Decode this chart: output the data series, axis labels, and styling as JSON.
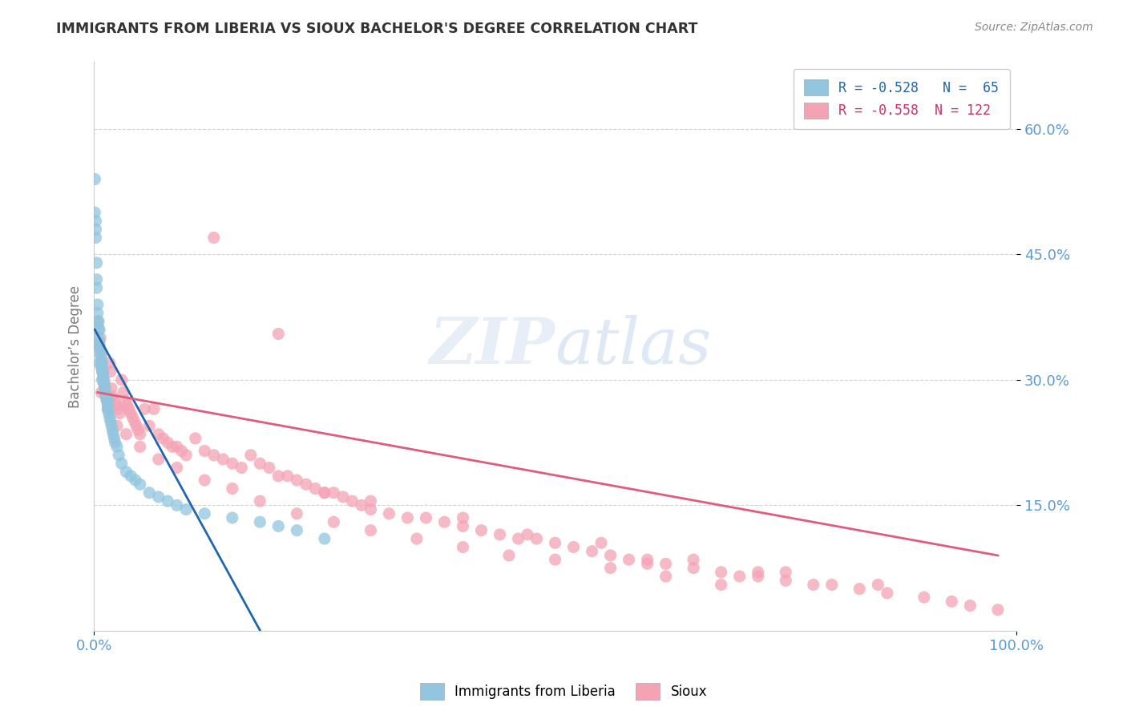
{
  "title": "IMMIGRANTS FROM LIBERIA VS SIOUX BACHELOR'S DEGREE CORRELATION CHART",
  "source": "Source: ZipAtlas.com",
  "ylabel": "Bachelor’s Degree",
  "legend1_label": "Immigrants from Liberia",
  "legend2_label": "Sioux",
  "R1": -0.528,
  "N1": 65,
  "R2": -0.558,
  "N2": 122,
  "color1": "#92c5de",
  "color2": "#f4a3b5",
  "line1_color": "#2166ac",
  "line2_color": "#e05c7a",
  "background_color": "#ffffff",
  "grid_color": "#c8c8c8",
  "title_color": "#333333",
  "axis_tick_color": "#5b9bd5",
  "xlim": [
    0.0,
    1.0
  ],
  "ylim": [
    0.0,
    0.68
  ],
  "blue_x": [
    0.001,
    0.001,
    0.002,
    0.002,
    0.002,
    0.003,
    0.003,
    0.003,
    0.004,
    0.004,
    0.004,
    0.005,
    0.005,
    0.005,
    0.006,
    0.006,
    0.006,
    0.007,
    0.007,
    0.008,
    0.008,
    0.008,
    0.009,
    0.009,
    0.01,
    0.01,
    0.011,
    0.011,
    0.012,
    0.012,
    0.013,
    0.014,
    0.015,
    0.015,
    0.016,
    0.017,
    0.018,
    0.019,
    0.02,
    0.021,
    0.022,
    0.023,
    0.025,
    0.027,
    0.03,
    0.035,
    0.04,
    0.045,
    0.05,
    0.06,
    0.07,
    0.08,
    0.09,
    0.1,
    0.12,
    0.15,
    0.18,
    0.2,
    0.22,
    0.25,
    0.003,
    0.006,
    0.009,
    0.012,
    0.015
  ],
  "blue_y": [
    0.54,
    0.5,
    0.49,
    0.47,
    0.48,
    0.44,
    0.42,
    0.41,
    0.39,
    0.38,
    0.37,
    0.36,
    0.37,
    0.35,
    0.345,
    0.34,
    0.36,
    0.335,
    0.33,
    0.325,
    0.32,
    0.315,
    0.31,
    0.32,
    0.31,
    0.305,
    0.3,
    0.295,
    0.29,
    0.285,
    0.28,
    0.275,
    0.27,
    0.265,
    0.26,
    0.255,
    0.25,
    0.245,
    0.24,
    0.235,
    0.23,
    0.225,
    0.22,
    0.21,
    0.2,
    0.19,
    0.185,
    0.18,
    0.175,
    0.165,
    0.16,
    0.155,
    0.15,
    0.145,
    0.14,
    0.135,
    0.13,
    0.125,
    0.12,
    0.11,
    0.34,
    0.32,
    0.3,
    0.285,
    0.275
  ],
  "pink_x": [
    0.004,
    0.006,
    0.007,
    0.008,
    0.009,
    0.01,
    0.011,
    0.012,
    0.013,
    0.014,
    0.015,
    0.016,
    0.017,
    0.018,
    0.019,
    0.02,
    0.022,
    0.024,
    0.026,
    0.028,
    0.03,
    0.032,
    0.034,
    0.036,
    0.038,
    0.04,
    0.042,
    0.044,
    0.046,
    0.048,
    0.05,
    0.055,
    0.06,
    0.065,
    0.07,
    0.075,
    0.08,
    0.085,
    0.09,
    0.095,
    0.1,
    0.11,
    0.12,
    0.13,
    0.14,
    0.15,
    0.16,
    0.17,
    0.18,
    0.19,
    0.2,
    0.21,
    0.22,
    0.23,
    0.24,
    0.25,
    0.26,
    0.27,
    0.28,
    0.29,
    0.3,
    0.32,
    0.34,
    0.36,
    0.38,
    0.4,
    0.42,
    0.44,
    0.46,
    0.48,
    0.5,
    0.52,
    0.54,
    0.56,
    0.58,
    0.6,
    0.62,
    0.65,
    0.68,
    0.7,
    0.72,
    0.75,
    0.78,
    0.8,
    0.83,
    0.86,
    0.9,
    0.93,
    0.95,
    0.98,
    0.008,
    0.015,
    0.025,
    0.035,
    0.05,
    0.07,
    0.09,
    0.12,
    0.15,
    0.18,
    0.22,
    0.26,
    0.3,
    0.35,
    0.4,
    0.45,
    0.5,
    0.56,
    0.62,
    0.68,
    0.25,
    0.4,
    0.55,
    0.65,
    0.75,
    0.85,
    0.47,
    0.6,
    0.72,
    0.3,
    0.13,
    0.2
  ],
  "pink_y": [
    0.365,
    0.34,
    0.35,
    0.33,
    0.31,
    0.3,
    0.295,
    0.29,
    0.28,
    0.275,
    0.27,
    0.265,
    0.32,
    0.31,
    0.29,
    0.28,
    0.275,
    0.27,
    0.265,
    0.26,
    0.3,
    0.285,
    0.275,
    0.27,
    0.265,
    0.26,
    0.255,
    0.25,
    0.245,
    0.24,
    0.235,
    0.265,
    0.245,
    0.265,
    0.235,
    0.23,
    0.225,
    0.22,
    0.22,
    0.215,
    0.21,
    0.23,
    0.215,
    0.21,
    0.205,
    0.2,
    0.195,
    0.21,
    0.2,
    0.195,
    0.185,
    0.185,
    0.18,
    0.175,
    0.17,
    0.165,
    0.165,
    0.16,
    0.155,
    0.15,
    0.145,
    0.14,
    0.135,
    0.135,
    0.13,
    0.125,
    0.12,
    0.115,
    0.11,
    0.11,
    0.105,
    0.1,
    0.095,
    0.09,
    0.085,
    0.08,
    0.08,
    0.075,
    0.07,
    0.065,
    0.065,
    0.06,
    0.055,
    0.055,
    0.05,
    0.045,
    0.04,
    0.035,
    0.03,
    0.025,
    0.285,
    0.265,
    0.245,
    0.235,
    0.22,
    0.205,
    0.195,
    0.18,
    0.17,
    0.155,
    0.14,
    0.13,
    0.12,
    0.11,
    0.1,
    0.09,
    0.085,
    0.075,
    0.065,
    0.055,
    0.165,
    0.135,
    0.105,
    0.085,
    0.07,
    0.055,
    0.115,
    0.085,
    0.07,
    0.155,
    0.47,
    0.355
  ],
  "blue_line_x": [
    0.001,
    0.22
  ],
  "blue_line_y": [
    0.36,
    -0.08
  ],
  "pink_line_x": [
    0.004,
    0.98
  ],
  "pink_line_y": [
    0.285,
    0.09
  ]
}
